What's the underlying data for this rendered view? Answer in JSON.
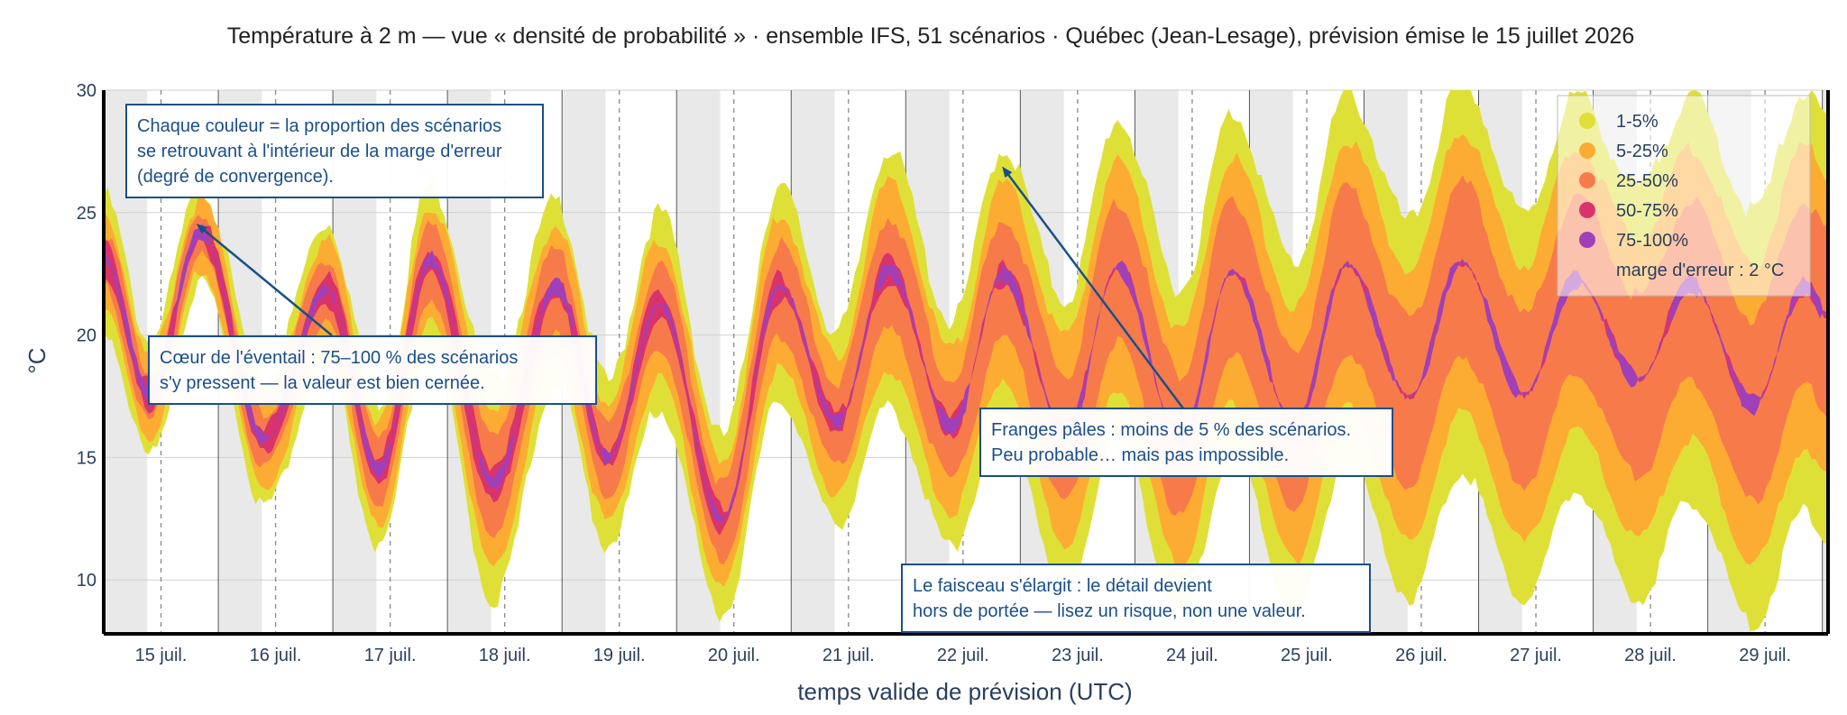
{
  "chart_data": {
    "type": "area",
    "title": "Température à 2 m — vue « densité de probabilité » · ensemble IFS, 51 scénarios · Québec (Jean-Lesage), prévision émise le 15 juillet 2026",
    "xlabel": "temps valide de prévision (UTC)",
    "ylabel": "°C",
    "ylim": [
      7.8,
      30
    ],
    "xlim_days": [
      14.5,
      29.55
    ],
    "y_ticks": [
      10,
      15,
      20,
      25,
      30
    ],
    "x_ticks": [
      {
        "day": 15,
        "label": "15 juil."
      },
      {
        "day": 16,
        "label": "16 juil."
      },
      {
        "day": 17,
        "label": "17 juil."
      },
      {
        "day": 18,
        "label": "18 juil."
      },
      {
        "day": 19,
        "label": "19 juil."
      },
      {
        "day": 20,
        "label": "20 juil."
      },
      {
        "day": 21,
        "label": "21 juil."
      },
      {
        "day": 22,
        "label": "22 juil."
      },
      {
        "day": 23,
        "label": "23 juil."
      },
      {
        "day": 24,
        "label": "24 juil."
      },
      {
        "day": 25,
        "label": "25 juil."
      },
      {
        "day": 26,
        "label": "26 juil."
      },
      {
        "day": 27,
        "label": "27 juil."
      },
      {
        "day": 28,
        "label": "28 juil."
      },
      {
        "day": 29,
        "label": "29 juil."
      }
    ],
    "grid": true,
    "night_shading": true,
    "legend_position": "top-right",
    "legend": [
      {
        "label": "1-5%",
        "color": "#dfe037"
      },
      {
        "label": "5-25%",
        "color": "#fdac33"
      },
      {
        "label": "25-50%",
        "color": "#f77a4a"
      },
      {
        "label": "50-75%",
        "color": "#d9336c"
      },
      {
        "label": "75-100%",
        "color": "#a040b8"
      }
    ],
    "legend_note": "marge d'erreur : 2 °C",
    "series_description_points": {
      "day": [
        14.5,
        14.9,
        15.35,
        15.9,
        16.45,
        16.9,
        17.35,
        17.9,
        18.45,
        18.9,
        19.35,
        19.9,
        20.4,
        20.9,
        21.35,
        21.9,
        22.35,
        22.9,
        23.35,
        23.9,
        24.35,
        24.9,
        25.35,
        25.9,
        26.35,
        26.9,
        27.35,
        27.9,
        28.35,
        28.9,
        29.35,
        29.55
      ],
      "median": [
        23.2,
        17.6,
        24.2,
        15.8,
        21.9,
        14.5,
        23.1,
        14.0,
        22.0,
        15.0,
        21.3,
        12.5,
        22.0,
        16.5,
        22.7,
        16.3,
        22.5,
        16.0,
        22.8,
        15.7,
        22.6,
        16.3,
        22.9,
        17.5,
        23.0,
        17.6,
        22.3,
        18.2,
        22.1,
        17.2,
        22.0,
        20.8
      ],
      "outer_spread": [
        3.0,
        2.6,
        2.2,
        2.8,
        3.2,
        3.3,
        3.6,
        4.8,
        4.0,
        3.6,
        4.3,
        3.9,
        4.6,
        4.2,
        5.6,
        4.9,
        5.8,
        6.2,
        6.8,
        7.0,
        7.3,
        7.5,
        7.8,
        8.0,
        8.3,
        8.2,
        8.4,
        8.7,
        8.6,
        8.8,
        8.9,
        8.9
      ]
    }
  },
  "annotations": [
    {
      "lines": [
        "Chaque couleur = la proportion des scénarios",
        "se retrouvant à l'intérieur de la marge d'erreur",
        "(degré de convergence)."
      ]
    },
    {
      "lines": [
        "Cœur de l'éventail : 75–100 % des scénarios",
        "s'y pressent — la valeur est bien cernée."
      ]
    },
    {
      "lines": [
        "Franges pâles : moins de 5 % des scénarios.",
        "Peu probable… mais pas impossible."
      ]
    },
    {
      "lines": [
        "Le faisceau s'élargit : le détail devient",
        "hors de portée — lisez un risque, non une valeur."
      ]
    }
  ]
}
